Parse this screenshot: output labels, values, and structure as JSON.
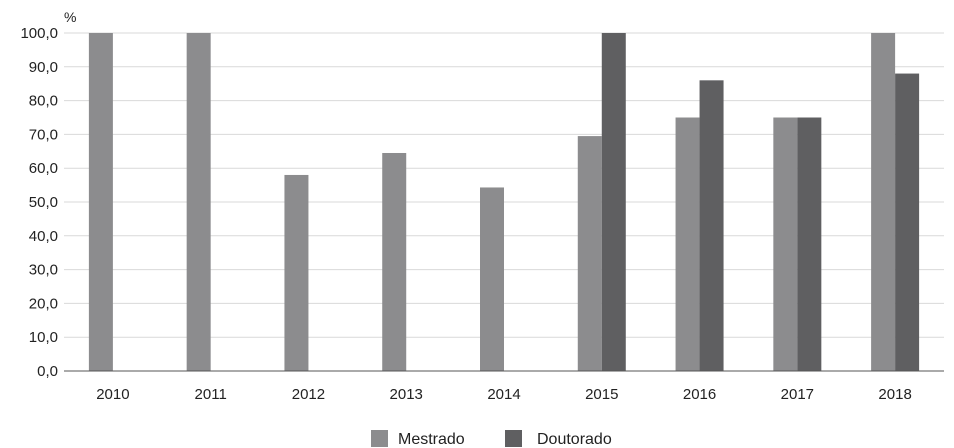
{
  "chart_data": {
    "type": "bar",
    "title": "",
    "xlabel": "",
    "ylabel": "%",
    "ylim": [
      0,
      100
    ],
    "yticks": [
      "0,0",
      "10,0",
      "20,0",
      "30,0",
      "40,0",
      "50,0",
      "60,0",
      "70,0",
      "80,0",
      "90,0",
      "100,0"
    ],
    "ytick_values": [
      0,
      10,
      20,
      30,
      40,
      50,
      60,
      70,
      80,
      90,
      100
    ],
    "categories": [
      "2010",
      "2011",
      "2012",
      "2013",
      "2014",
      "2015",
      "2016",
      "2017",
      "2018"
    ],
    "series": [
      {
        "name": "Mestrado",
        "color": "#8c8c8e",
        "values": [
          100,
          100,
          58,
          64.5,
          54.3,
          69.5,
          75,
          75,
          100
        ]
      },
      {
        "name": "Doutorado",
        "color": "#5f5f61",
        "values": [
          null,
          null,
          null,
          null,
          null,
          100,
          86,
          75,
          88
        ]
      }
    ],
    "grid": true,
    "legend_position": "bottom-center"
  }
}
